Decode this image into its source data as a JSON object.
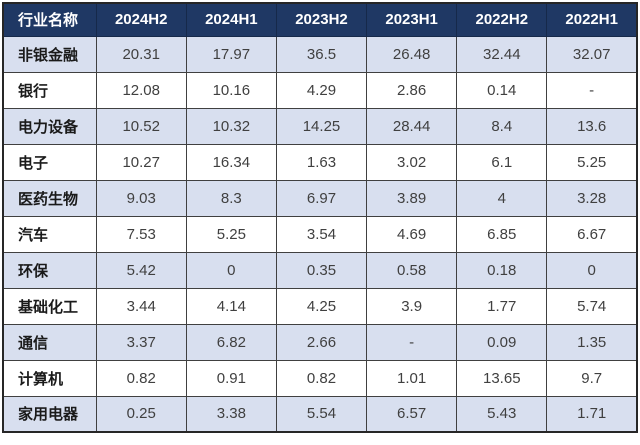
{
  "table": {
    "header": [
      "行业名称",
      "2024H2",
      "2024H1",
      "2023H2",
      "2023H1",
      "2022H2",
      "2022H1"
    ],
    "rows": [
      {
        "label": "非银金融",
        "values": [
          "20.31",
          "17.97",
          "36.5",
          "26.48",
          "32.44",
          "32.07"
        ]
      },
      {
        "label": "银行",
        "values": [
          "12.08",
          "10.16",
          "4.29",
          "2.86",
          "0.14",
          "-"
        ]
      },
      {
        "label": "电力设备",
        "values": [
          "10.52",
          "10.32",
          "14.25",
          "28.44",
          "8.4",
          "13.6"
        ]
      },
      {
        "label": "电子",
        "values": [
          "10.27",
          "16.34",
          "1.63",
          "3.02",
          "6.1",
          "5.25"
        ]
      },
      {
        "label": "医药生物",
        "values": [
          "9.03",
          "8.3",
          "6.97",
          "3.89",
          "4",
          "3.28"
        ]
      },
      {
        "label": "汽车",
        "values": [
          "7.53",
          "5.25",
          "3.54",
          "4.69",
          "6.85",
          "6.67"
        ]
      },
      {
        "label": "环保",
        "values": [
          "5.42",
          "0",
          "0.35",
          "0.58",
          "0.18",
          "0"
        ]
      },
      {
        "label": "基础化工",
        "values": [
          "3.44",
          "4.14",
          "4.25",
          "3.9",
          "1.77",
          "5.74"
        ]
      },
      {
        "label": "通信",
        "values": [
          "3.37",
          "6.82",
          "2.66",
          "-",
          "0.09",
          "1.35"
        ]
      },
      {
        "label": "计算机",
        "values": [
          "0.82",
          "0.91",
          "0.82",
          "1.01",
          "13.65",
          "9.7"
        ]
      },
      {
        "label": "家用电器",
        "values": [
          "0.25",
          "3.38",
          "5.54",
          "6.57",
          "5.43",
          "1.71"
        ]
      }
    ]
  },
  "colors": {
    "header_bg": "#1F3864",
    "header_text": "#FFFFFF",
    "row_alt_bg": "#D8DFEF",
    "row_bg": "#FFFFFF",
    "value_text": "#404040",
    "label_text": "#1A1A1A",
    "grid_border": "#404040"
  },
  "chart_data": {
    "type": "table",
    "title": "",
    "columns": [
      "行业名称",
      "2024H2",
      "2024H1",
      "2023H2",
      "2023H1",
      "2022H2",
      "2022H1"
    ],
    "categories": [
      "非银金融",
      "银行",
      "电力设备",
      "电子",
      "医药生物",
      "汽车",
      "环保",
      "基础化工",
      "通信",
      "计算机",
      "家用电器"
    ],
    "series": [
      {
        "name": "2024H2",
        "values": [
          20.31,
          12.08,
          10.52,
          10.27,
          9.03,
          7.53,
          5.42,
          3.44,
          3.37,
          0.82,
          0.25
        ]
      },
      {
        "name": "2024H1",
        "values": [
          17.97,
          10.16,
          10.32,
          16.34,
          8.3,
          5.25,
          0,
          4.14,
          6.82,
          0.91,
          3.38
        ]
      },
      {
        "name": "2023H2",
        "values": [
          36.5,
          4.29,
          14.25,
          1.63,
          6.97,
          3.54,
          0.35,
          4.25,
          2.66,
          0.82,
          5.54
        ]
      },
      {
        "name": "2023H1",
        "values": [
          26.48,
          2.86,
          28.44,
          3.02,
          3.89,
          4.69,
          0.58,
          3.9,
          null,
          1.01,
          6.57
        ]
      },
      {
        "name": "2022H2",
        "values": [
          32.44,
          0.14,
          8.4,
          6.1,
          4,
          6.85,
          0.18,
          1.77,
          0.09,
          13.65,
          5.43
        ]
      },
      {
        "name": "2022H1",
        "values": [
          32.07,
          null,
          13.6,
          5.25,
          3.28,
          6.67,
          0,
          5.74,
          1.35,
          9.7,
          1.71
        ]
      }
    ],
    "missing_value_display": "-"
  }
}
